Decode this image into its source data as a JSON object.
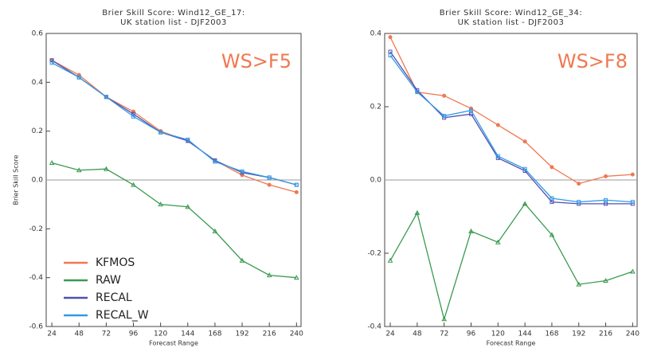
{
  "chart_data": [
    {
      "type": "line",
      "title": "Brier Skill Score:  Wind12_GE_17:",
      "subtitle": "UK station list - DJF2003",
      "x_label": "Forecast Range",
      "y_label": "Brier Skill Score",
      "annotation": "WS>F5",
      "x": [
        24,
        48,
        72,
        96,
        120,
        144,
        168,
        192,
        216,
        240
      ],
      "xlim": [
        19,
        244
      ],
      "xticks": [
        24,
        48,
        72,
        96,
        120,
        144,
        168,
        192,
        216,
        240
      ],
      "ylim": [
        -0.6,
        0.6
      ],
      "yticks": [
        -0.6,
        -0.4,
        -0.2,
        {
          "value": 0,
          "label": "0.0"
        },
        0.2,
        0.4,
        0.6
      ],
      "hline": 0,
      "legend": "lower left",
      "series": [
        {
          "name": "KFMOS",
          "color": "#f07850",
          "values": [
            0.49,
            0.43,
            0.34,
            0.28,
            0.2,
            0.16,
            0.08,
            0.02,
            -0.02,
            -0.05
          ]
        },
        {
          "name": "RAW",
          "color": "#3a9a50",
          "values": [
            0.07,
            0.04,
            0.045,
            -0.02,
            -0.1,
            -0.11,
            -0.21,
            -0.33,
            -0.39,
            -0.4
          ]
        },
        {
          "name": "RECAL",
          "color": "#5050b0",
          "values": [
            0.49,
            0.42,
            0.34,
            0.27,
            0.195,
            0.16,
            0.08,
            0.03,
            0.01,
            -0.02
          ]
        },
        {
          "name": "RECAL_W",
          "color": "#3399e6",
          "values": [
            0.48,
            0.42,
            0.34,
            0.26,
            0.195,
            0.165,
            0.075,
            0.035,
            0.01,
            -0.02
          ]
        }
      ]
    },
    {
      "type": "line",
      "title": "Brier Skill Score:  Wind12_GE_34:",
      "subtitle": "UK station list - DJF2003",
      "x_label": "Forecast Range",
      "annotation": "WS>F8",
      "x": [
        24,
        48,
        72,
        96,
        120,
        144,
        168,
        192,
        216,
        240
      ],
      "xlim": [
        19,
        244
      ],
      "xticks": [
        24,
        48,
        72,
        96,
        120,
        144,
        168,
        192,
        216,
        240
      ],
      "ylim": [
        -0.4,
        0.4
      ],
      "yticks": [
        -0.4,
        -0.2,
        {
          "value": 0,
          "label": "0.0"
        },
        0.2,
        0.4
      ],
      "hline": 0,
      "series": [
        {
          "color": "#f07850",
          "values": [
            0.39,
            0.24,
            0.23,
            0.195,
            0.15,
            0.105,
            0.035,
            -0.01,
            0.01,
            0.015
          ]
        },
        {
          "color": "#3a9a50",
          "values": [
            -0.22,
            -0.09,
            -0.38,
            -0.14,
            -0.17,
            -0.065,
            -0.15,
            -0.285,
            -0.275,
            -0.25
          ]
        },
        {
          "color": "#5050b0",
          "values": [
            0.35,
            0.245,
            0.17,
            0.18,
            0.06,
            0.025,
            -0.06,
            -0.065,
            -0.065,
            -0.065
          ]
        },
        {
          "color": "#3399e6",
          "values": [
            0.34,
            0.24,
            0.175,
            0.19,
            0.065,
            0.03,
            -0.05,
            -0.06,
            -0.055,
            -0.06
          ]
        }
      ]
    }
  ]
}
